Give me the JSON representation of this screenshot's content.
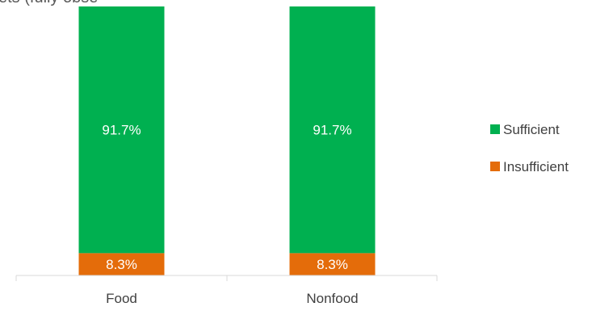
{
  "chart_data": {
    "type": "bar",
    "stacked": true,
    "percent_stacked": true,
    "title": "ets (fully obse",
    "categories": [
      "Food",
      "Nonfood"
    ],
    "series": [
      {
        "name": "Insufficient",
        "values": [
          8.3,
          8.3
        ],
        "labels": [
          "8.3%",
          "8.3%"
        ],
        "color": "#E46C0A"
      },
      {
        "name": "Sufficient",
        "values": [
          91.7,
          91.7
        ],
        "labels": [
          "91.7%",
          "91.7%"
        ],
        "color": "#00B050"
      }
    ],
    "legend_position": "right",
    "ylim": [
      0,
      100
    ],
    "grid": false
  }
}
